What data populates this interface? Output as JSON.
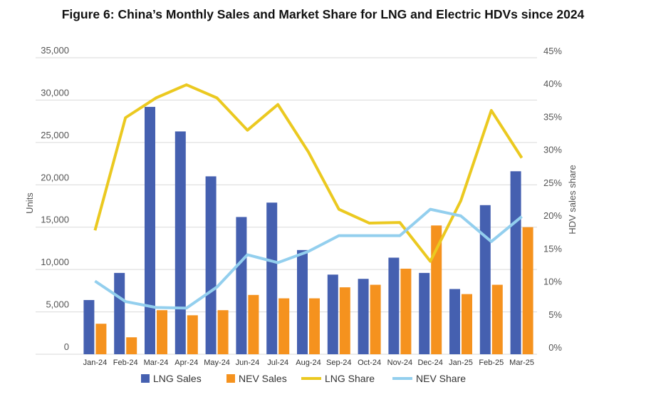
{
  "chart_data": {
    "type": "bar",
    "title": "Figure 6: China’s Monthly Sales and Market Share for LNG and Electric HDVs since 2024",
    "ylabel": "Units",
    "y2label": "HDV sales share",
    "ylim": [
      0,
      35000
    ],
    "y2lim": [
      0,
      45
    ],
    "yticks": [
      "0",
      "5,000",
      "10,000",
      "15,000",
      "20,000",
      "25,000",
      "30,000",
      "35,000"
    ],
    "y2ticks": [
      "0%",
      "5%",
      "10%",
      "15%",
      "20%",
      "25%",
      "30%",
      "35%",
      "40%",
      "45%"
    ],
    "grid": true,
    "legend_position": "bottom",
    "categories": [
      "Jan-24",
      "Feb-24",
      "Mar-24",
      "Apr-24",
      "May-24",
      "Jun-24",
      "Jul-24",
      "Aug-24",
      "Sep-24",
      "Oct-24",
      "Nov-24",
      "Dec-24",
      "Jan-25",
      "Feb-25",
      "Mar-25"
    ],
    "series": [
      {
        "name": "LNG Sales",
        "type": "bar",
        "axis": "left",
        "color": "#4560b0",
        "values": [
          6400,
          9600,
          29200,
          26300,
          21000,
          16200,
          17900,
          12300,
          9400,
          8900,
          11400,
          9600,
          7700,
          17600,
          21600
        ]
      },
      {
        "name": "NEV Sales",
        "type": "bar",
        "axis": "left",
        "color": "#f5921e",
        "values": [
          3600,
          2000,
          5200,
          4600,
          5200,
          7000,
          6600,
          6600,
          7900,
          8200,
          10100,
          15200,
          7100,
          8200,
          15000
        ]
      },
      {
        "name": "LNG Share",
        "type": "line",
        "axis": "right",
        "color": "#ebc920",
        "values": [
          18.8,
          35.9,
          38.9,
          40.9,
          38.9,
          34.0,
          37.9,
          30.7,
          22.0,
          19.9,
          20.0,
          14.1,
          23.3,
          37.0,
          29.8
        ]
      },
      {
        "name": "NEV Share",
        "type": "line",
        "axis": "right",
        "color": "#93cfee",
        "values": [
          11.1,
          8.0,
          7.1,
          7.0,
          10.2,
          15.1,
          13.9,
          15.6,
          18.0,
          18.0,
          18.0,
          22.0,
          21.0,
          17.1,
          20.9
        ]
      }
    ]
  }
}
